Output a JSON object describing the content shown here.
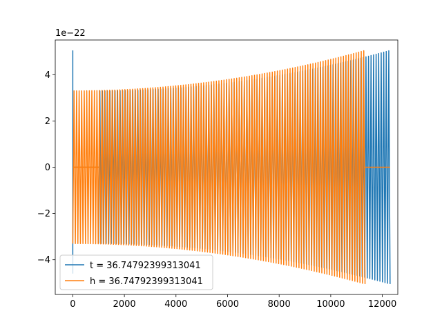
{
  "chart_data": {
    "type": "line",
    "title": "",
    "xlabel": "",
    "ylabel": "",
    "y_offset_label": "1e−22",
    "y_scale_exponent": -22,
    "xlim": [
      -680,
      12600
    ],
    "ylim": [
      -5.5,
      5.5
    ],
    "x_ticks": [
      0,
      2000,
      4000,
      6000,
      8000,
      10000,
      12000
    ],
    "x_tick_labels": [
      "0",
      "2000",
      "4000",
      "6000",
      "8000",
      "10000",
      "12000"
    ],
    "y_ticks": [
      -4,
      -2,
      0,
      2,
      4
    ],
    "y_tick_labels": [
      "−4",
      "−2",
      "0",
      "2",
      "4"
    ],
    "grid": false,
    "legend_position": "lower-left",
    "series": [
      {
        "name": "t = 36.74792399313041",
        "color": "#1f77b4",
        "spike": {
          "x": 0,
          "values": [
            -4.6,
            5.05
          ]
        },
        "zero_segment": [
          0,
          1000
        ],
        "oscillation_range": [
          1000,
          12300
        ],
        "amplitude_start": 3.3,
        "amplitude_end": 5.05,
        "cycles": 115
      },
      {
        "name": "h = 36.74792399313041",
        "color": "#ff7f0e",
        "zero_segments": [
          [
            0,
            1000
          ],
          [
            11330,
            12300
          ]
        ],
        "oscillation_range": [
          0,
          11330
        ],
        "amplitude_start": 3.3,
        "amplitude_end": 5.05,
        "cycles": 115
      }
    ]
  }
}
